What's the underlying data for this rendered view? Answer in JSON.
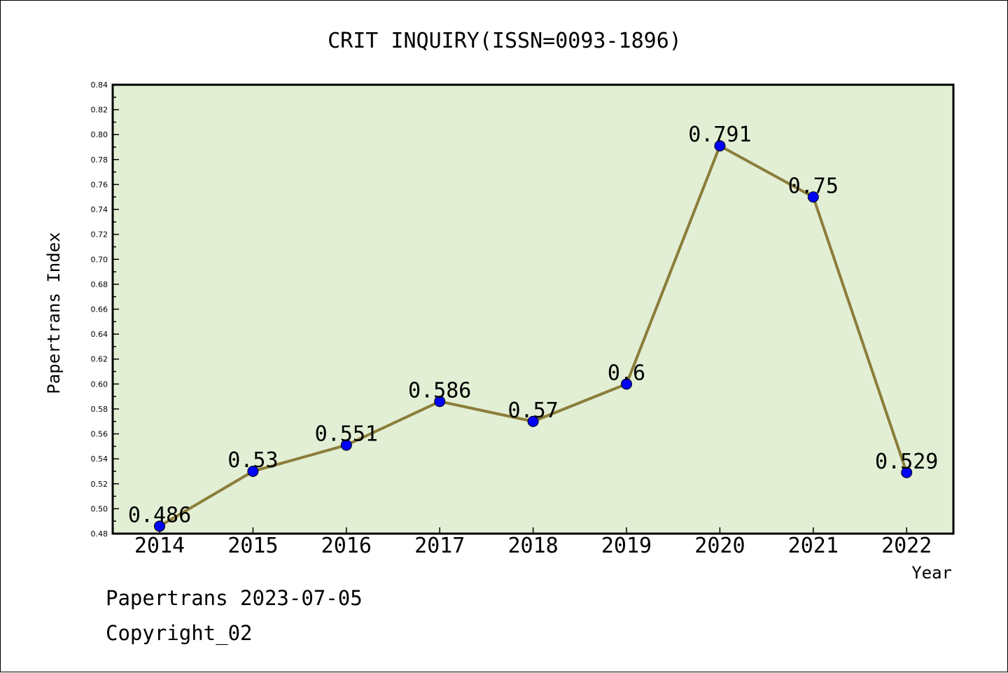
{
  "chart_data": {
    "type": "line",
    "title": "CRIT INQUIRY(ISSN=0093-1896)",
    "xlabel": "Year",
    "ylabel": "Papertrans Index",
    "categories": [
      "2014",
      "2015",
      "2016",
      "2017",
      "2018",
      "2019",
      "2020",
      "2021",
      "2022"
    ],
    "series": [
      {
        "values": [
          0.486,
          0.53,
          0.551,
          0.586,
          0.57,
          0.6,
          0.791,
          0.75,
          0.529
        ],
        "labels": [
          "0.486",
          "0.53",
          "0.551",
          "0.586",
          "0.57",
          "0.6",
          "0.791",
          "0.75",
          "0.529"
        ]
      }
    ],
    "ylim": [
      0.48,
      0.84
    ],
    "yticks": [
      "0.48",
      "0.50",
      "0.52",
      "0.54",
      "0.56",
      "0.58",
      "0.60",
      "0.62",
      "0.64",
      "0.66",
      "0.68",
      "0.70",
      "0.72",
      "0.74",
      "0.76",
      "0.78",
      "0.80",
      "0.82",
      "0.84"
    ],
    "grid": false,
    "legend": "none",
    "colors": {
      "plot_background": "#e2efd5",
      "line": "#8b7d3a",
      "marker": "#0000ff"
    }
  },
  "footer": {
    "date_line": "Papertrans 2023-07-05",
    "copyright": "Copyright_02"
  }
}
